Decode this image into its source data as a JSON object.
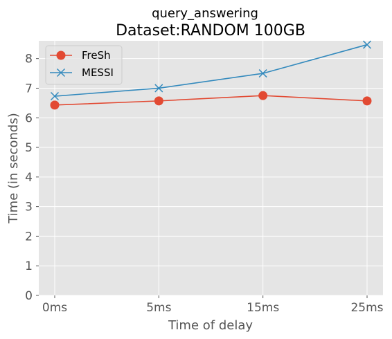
{
  "chart_data": {
    "type": "line",
    "title": "query_answering",
    "subtitle": "Dataset:RANDOM 100GB",
    "xlabel": "Time of delay",
    "ylabel": "Time (in seconds)",
    "categories": [
      "0ms",
      "5ms",
      "15ms",
      "25ms"
    ],
    "ylim": [
      0,
      8.6
    ],
    "yticks": [
      0,
      1,
      2,
      3,
      4,
      5,
      6,
      7,
      8
    ],
    "grid": true,
    "legend_position": "top-left",
    "series": [
      {
        "name": "FreSh",
        "values": [
          6.43,
          6.57,
          6.75,
          6.57
        ],
        "color": "#e24a33",
        "marker": "circle"
      },
      {
        "name": "MESSI",
        "values": [
          6.73,
          7.0,
          7.5,
          8.47
        ],
        "color": "#348abd",
        "marker": "x"
      }
    ],
    "colors": {
      "plot_background": "#e5e5e5",
      "grid": "#ffffff",
      "text": "#555555",
      "title": "#000000"
    }
  }
}
